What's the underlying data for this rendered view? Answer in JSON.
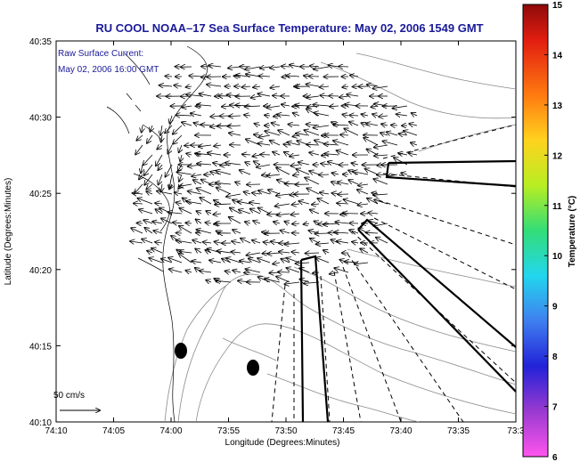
{
  "map": {
    "title": "RU COOL  NOAA–17  Sea Surface Temperature:  May 02, 2006 1549 GMT",
    "annotation_line1": "Raw Surface Current:",
    "annotation_line2": "May 02, 2006 16:00 GMT",
    "scale_label": "50 cm/s",
    "x_axis_label": "Longitude (Degrees:Minutes)",
    "y_axis_label": "Latitude (Degrees:Minutes)",
    "x_ticks": [
      "74:10",
      "74:05",
      "74:00",
      "73:55",
      "73:50",
      "73:45",
      "73:40",
      "73:35",
      "73:3"
    ],
    "y_ticks": [
      "40:35",
      "40:30",
      "40:25",
      "40:20",
      "40:15",
      "40:10"
    ]
  },
  "colorbar": {
    "title": "Temperature (°C)",
    "ticks": [
      "15",
      "14",
      "13",
      "12",
      "11",
      "10",
      "9",
      "8",
      "7",
      "6"
    ],
    "colors": [
      "#ff55ee",
      "#9a3ad0",
      "#2222d8",
      "#3f7ff0",
      "#22d6ee",
      "#33dd77",
      "#b8ee22",
      "#ffd21e",
      "#ff7a10",
      "#e21e10",
      "#8f0a0a"
    ]
  }
}
